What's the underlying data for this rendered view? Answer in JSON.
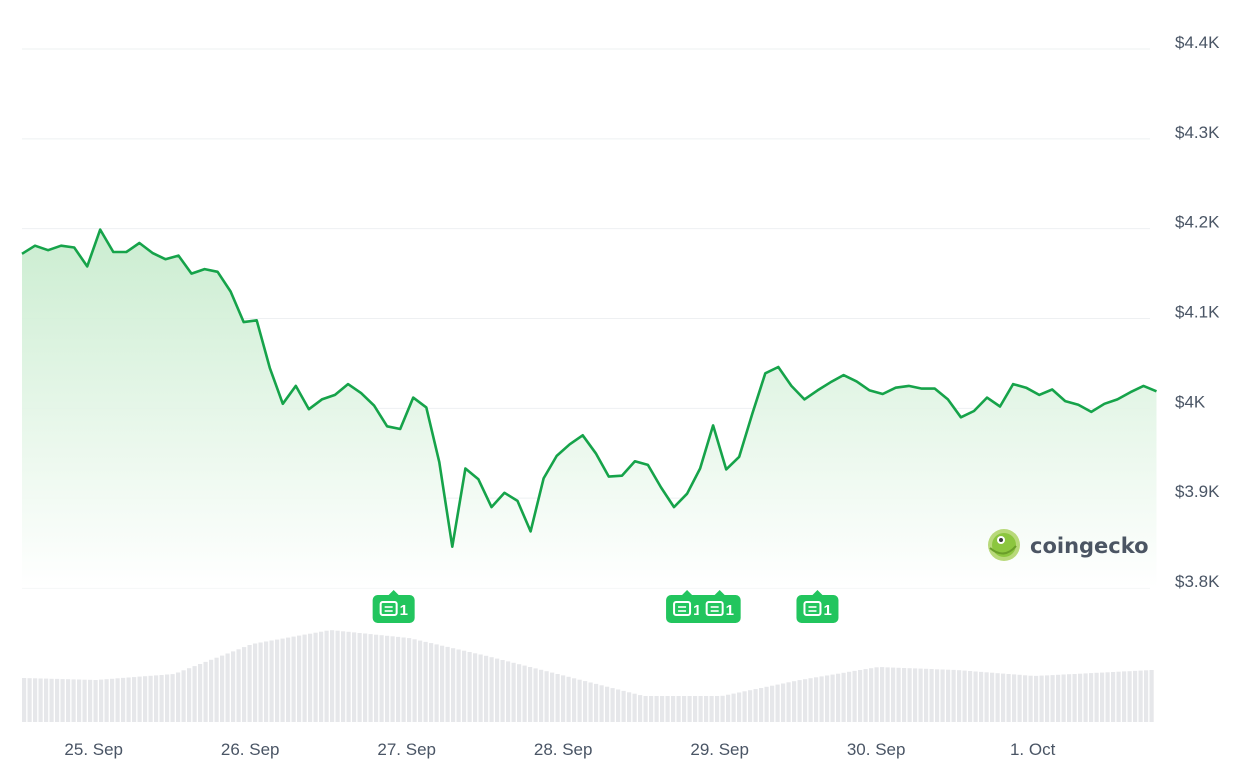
{
  "chart_data": {
    "type": "area",
    "colors": {
      "line": "#16a34a",
      "area": "#dcf5df",
      "badge": "#22c55e",
      "volume": "#e6e7ea",
      "grid": "#eef0f2"
    },
    "grid": true,
    "y_axis": {
      "position": "right",
      "range": [
        3800,
        4400
      ],
      "ticks": [
        {
          "value": 4400,
          "label": "$4.4K"
        },
        {
          "value": 4300,
          "label": "$4.3K"
        },
        {
          "value": 4200,
          "label": "$4.2K"
        },
        {
          "value": 4100,
          "label": "$4.1K"
        },
        {
          "value": 4000,
          "label": "$4K"
        },
        {
          "value": 3900,
          "label": "$3.9K"
        },
        {
          "value": 3800,
          "label": "$3.8K"
        }
      ]
    },
    "x_axis": {
      "range": [
        "2025-09-24T13:00",
        "2025-10-01T18:00"
      ],
      "ticks": [
        {
          "date": "2025-09-25T00:00",
          "label": "25. Sep"
        },
        {
          "date": "2025-09-26T00:00",
          "label": "26. Sep"
        },
        {
          "date": "2025-09-27T00:00",
          "label": "27. Sep"
        },
        {
          "date": "2025-09-28T00:00",
          "label": "28. Sep"
        },
        {
          "date": "2025-09-29T00:00",
          "label": "29. Sep"
        },
        {
          "date": "2025-09-30T00:00",
          "label": "30. Sep"
        },
        {
          "date": "2025-10-01T00:00",
          "label": "1. Oct"
        }
      ]
    },
    "series": [
      {
        "values": [
          [
            "2025-09-24T13:00",
            4172
          ],
          [
            "2025-09-24T15:00",
            4181
          ],
          [
            "2025-09-24T17:00",
            4176
          ],
          [
            "2025-09-24T19:00",
            4181
          ],
          [
            "2025-09-24T21:00",
            4179
          ],
          [
            "2025-09-24T23:00",
            4158
          ],
          [
            "2025-09-25T01:00",
            4199
          ],
          [
            "2025-09-25T03:00",
            4174
          ],
          [
            "2025-09-25T05:00",
            4174
          ],
          [
            "2025-09-25T07:00",
            4184
          ],
          [
            "2025-09-25T09:00",
            4173
          ],
          [
            "2025-09-25T11:00",
            4166
          ],
          [
            "2025-09-25T13:00",
            4170
          ],
          [
            "2025-09-25T15:00",
            4150
          ],
          [
            "2025-09-25T17:00",
            4155
          ],
          [
            "2025-09-25T19:00",
            4152
          ],
          [
            "2025-09-25T21:00",
            4130
          ],
          [
            "2025-09-25T23:00",
            4096
          ],
          [
            "2025-09-26T01:00",
            4098
          ],
          [
            "2025-09-26T03:00",
            4045
          ],
          [
            "2025-09-26T05:00",
            4005
          ],
          [
            "2025-09-26T07:00",
            4025
          ],
          [
            "2025-09-26T09:00",
            3999
          ],
          [
            "2025-09-26T11:00",
            4010
          ],
          [
            "2025-09-26T13:00",
            4015
          ],
          [
            "2025-09-26T15:00",
            4027
          ],
          [
            "2025-09-26T17:00",
            4017
          ],
          [
            "2025-09-26T19:00",
            4003
          ],
          [
            "2025-09-26T21:00",
            3980
          ],
          [
            "2025-09-26T23:00",
            3977
          ],
          [
            "2025-09-27T01:00",
            4012
          ],
          [
            "2025-09-27T03:00",
            4001
          ],
          [
            "2025-09-27T05:00",
            3940
          ],
          [
            "2025-09-27T07:00",
            3846
          ],
          [
            "2025-09-27T09:00",
            3933
          ],
          [
            "2025-09-27T11:00",
            3921
          ],
          [
            "2025-09-27T13:00",
            3890
          ],
          [
            "2025-09-27T15:00",
            3906
          ],
          [
            "2025-09-27T17:00",
            3897
          ],
          [
            "2025-09-27T19:00",
            3863
          ],
          [
            "2025-09-27T21:00",
            3922
          ],
          [
            "2025-09-27T23:00",
            3947
          ],
          [
            "2025-09-28T01:00",
            3960
          ],
          [
            "2025-09-28T03:00",
            3970
          ],
          [
            "2025-09-28T05:00",
            3950
          ],
          [
            "2025-09-28T07:00",
            3924
          ],
          [
            "2025-09-28T09:00",
            3925
          ],
          [
            "2025-09-28T11:00",
            3941
          ],
          [
            "2025-09-28T13:00",
            3937
          ],
          [
            "2025-09-28T15:00",
            3912
          ],
          [
            "2025-09-28T17:00",
            3890
          ],
          [
            "2025-09-28T19:00",
            3905
          ],
          [
            "2025-09-28T21:00",
            3933
          ],
          [
            "2025-09-28T23:00",
            3981
          ],
          [
            "2025-09-29T01:00",
            3932
          ],
          [
            "2025-09-29T03:00",
            3946
          ],
          [
            "2025-09-29T05:00",
            3994
          ],
          [
            "2025-09-29T07:00",
            4039
          ],
          [
            "2025-09-29T09:00",
            4046
          ],
          [
            "2025-09-29T11:00",
            4025
          ],
          [
            "2025-09-29T13:00",
            4010
          ],
          [
            "2025-09-29T15:00",
            4020
          ],
          [
            "2025-09-29T17:00",
            4029
          ],
          [
            "2025-09-29T19:00",
            4037
          ],
          [
            "2025-09-29T21:00",
            4030
          ],
          [
            "2025-09-29T23:00",
            4020
          ],
          [
            "2025-09-30T01:00",
            4016
          ],
          [
            "2025-09-30T03:00",
            4023
          ],
          [
            "2025-09-30T05:00",
            4025
          ],
          [
            "2025-09-30T07:00",
            4022
          ],
          [
            "2025-09-30T09:00",
            4022
          ],
          [
            "2025-09-30T11:00",
            4010
          ],
          [
            "2025-09-30T13:00",
            3990
          ],
          [
            "2025-09-30T15:00",
            3997
          ],
          [
            "2025-09-30T17:00",
            4012
          ],
          [
            "2025-09-30T19:00",
            4002
          ],
          [
            "2025-09-30T21:00",
            4027
          ],
          [
            "2025-09-30T23:00",
            4023
          ],
          [
            "2025-10-01T01:00",
            4015
          ],
          [
            "2025-10-01T03:00",
            4021
          ],
          [
            "2025-10-01T05:00",
            4008
          ],
          [
            "2025-10-01T07:00",
            4004
          ],
          [
            "2025-10-01T09:00",
            3996
          ],
          [
            "2025-10-01T11:00",
            4005
          ],
          [
            "2025-10-01T13:00",
            4010
          ],
          [
            "2025-10-01T15:00",
            4018
          ],
          [
            "2025-10-01T17:00",
            4025
          ],
          [
            "2025-10-01T19:00",
            4019
          ]
        ]
      }
    ],
    "volume": [
      [
        "2025-09-24T13:00",
        44
      ],
      [
        "2025-09-25T00:00",
        42
      ],
      [
        "2025-09-25T12:00",
        48
      ],
      [
        "2025-09-26T00:00",
        78
      ],
      [
        "2025-09-26T12:00",
        92
      ],
      [
        "2025-09-27T00:00",
        84
      ],
      [
        "2025-09-27T12:00",
        66
      ],
      [
        "2025-09-28T00:00",
        46
      ],
      [
        "2025-09-28T12:00",
        26
      ],
      [
        "2025-09-29T00:00",
        26
      ],
      [
        "2025-09-29T12:00",
        42
      ],
      [
        "2025-09-30T00:00",
        55
      ],
      [
        "2025-09-30T12:00",
        52
      ],
      [
        "2025-10-01T00:00",
        46
      ],
      [
        "2025-10-01T18:00",
        52
      ]
    ],
    "news_markers": [
      {
        "date": "2025-09-26T22:00",
        "count": "1"
      },
      {
        "date": "2025-09-28T19:00",
        "count": "1"
      },
      {
        "date": "2025-09-29T00:00",
        "count": "1"
      },
      {
        "date": "2025-09-29T15:00",
        "count": "1"
      }
    ]
  },
  "watermark": {
    "text": "coingecko"
  }
}
